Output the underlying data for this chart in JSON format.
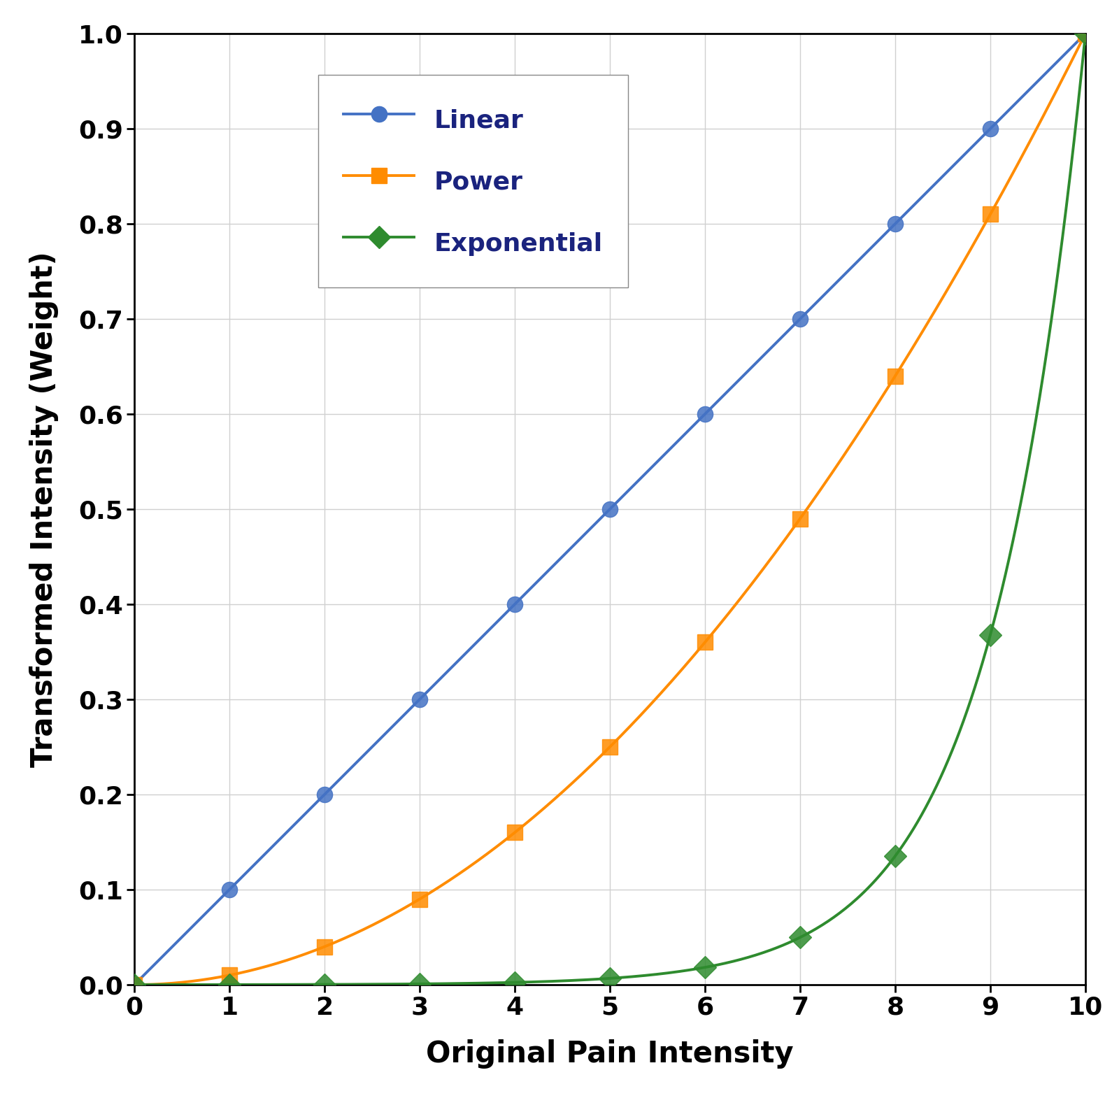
{
  "title": "",
  "xlabel": "Original Pain Intensity",
  "ylabel": "Transformed Intensity (Weight)",
  "xlim": [
    0,
    10
  ],
  "ylim": [
    0,
    1
  ],
  "x_ticks": [
    0,
    1,
    2,
    3,
    4,
    5,
    6,
    7,
    8,
    9,
    10
  ],
  "y_ticks": [
    0,
    0.1,
    0.2,
    0.3,
    0.4,
    0.5,
    0.6,
    0.7,
    0.8,
    0.9,
    1.0
  ],
  "linear_color": "#4472C4",
  "power_color": "#FF8C00",
  "exp_color": "#2E8B2E",
  "legend_labels": [
    "Linear",
    "Power",
    "Exponential"
  ],
  "legend_text_color": "#1a237e",
  "background_color": "#ffffff",
  "grid_color": "#d0d0d0",
  "power_p": 2,
  "exp_b": 2.718281828,
  "exp_a": 1,
  "figsize": [
    16,
    16
  ],
  "dpi": 100,
  "linewidth": 2.8,
  "markersize": 16,
  "tick_labelsize": 26,
  "axis_labelsize": 30,
  "legend_fontsize": 26
}
